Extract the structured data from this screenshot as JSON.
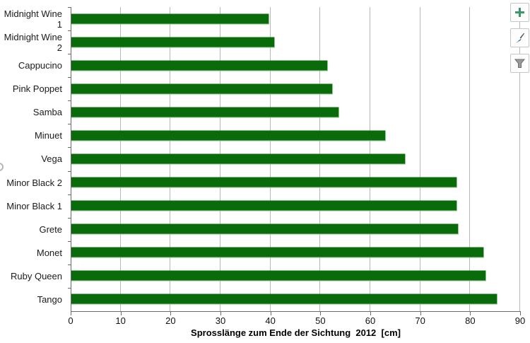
{
  "chart_data": {
    "type": "bar",
    "orientation": "horizontal",
    "xlabel": "Sprosslänge zum Ende der Sichtung  2012  [cm]",
    "categories": [
      "Midnight Wine 1",
      "Midnight Wine 2",
      "Cappucino",
      "Pink Poppet",
      "Samba",
      "Minuet",
      "Vega",
      "Minor Black 2",
      "Minor Black 1",
      "Grete",
      "Monet",
      "Ruby Queen",
      "Tango"
    ],
    "values": [
      39.6,
      40.7,
      51.3,
      52.4,
      53.6,
      63.0,
      66.9,
      77.3,
      77.3,
      77.6,
      82.7,
      83.0,
      85.4
    ],
    "xlim": [
      0,
      90
    ],
    "xticks": [
      0,
      10,
      20,
      30,
      40,
      50,
      60,
      70,
      80,
      90
    ],
    "grid": "vertical",
    "legend": "none",
    "bar_color": "#0a6b0a",
    "bar_edge_color": "#90c690",
    "gridline_color": "#b8b8b8",
    "axis_color": "#6a6a6a"
  },
  "toolbar": {
    "buttons": [
      {
        "icon": "plus-icon",
        "icon_color": "#3f966b"
      },
      {
        "icon": "paintbrush-icon",
        "icon_color": "#3a78b5"
      },
      {
        "icon": "funnel-icon",
        "icon_color": "#8f8f8f"
      }
    ]
  }
}
